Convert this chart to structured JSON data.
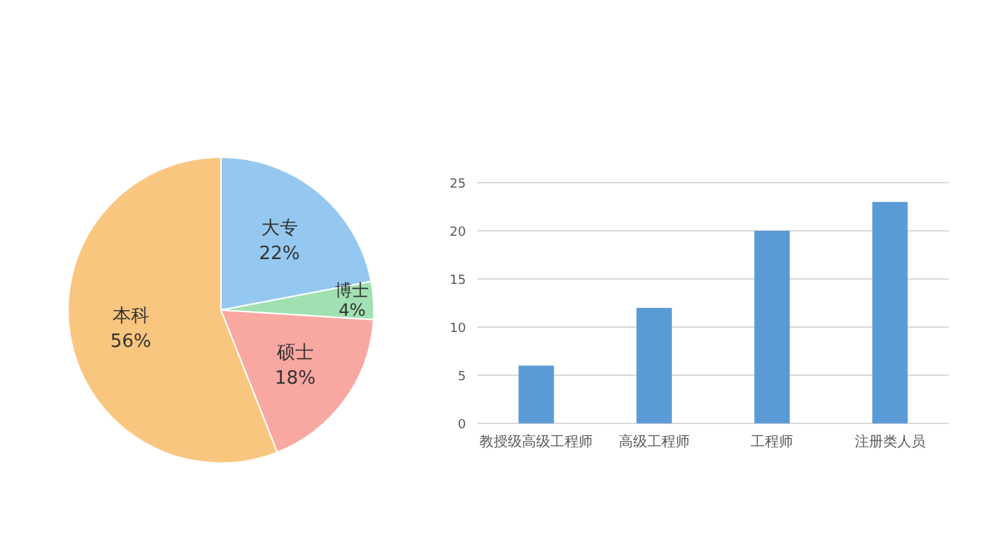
{
  "chart_data": [
    {
      "type": "pie",
      "categories": [
        "大专",
        "博士",
        "硕士",
        "本科"
      ],
      "values": [
        22,
        4,
        18,
        56
      ],
      "colors": [
        "#95c8f0",
        "#a1e0b2",
        "#f9a7a1",
        "#f9c680"
      ],
      "value_labels": [
        "22%",
        "4%",
        "18%",
        "56%"
      ]
    },
    {
      "type": "bar",
      "categories": [
        "教授级高级工程师",
        "高级工程师",
        "工程师",
        "注册类人员"
      ],
      "values": [
        6,
        12,
        20,
        23
      ],
      "color": "#5b9bd5",
      "ylim": [
        0,
        25
      ],
      "yticks": [
        0,
        5,
        10,
        15,
        20,
        25
      ],
      "grid": "y"
    }
  ]
}
